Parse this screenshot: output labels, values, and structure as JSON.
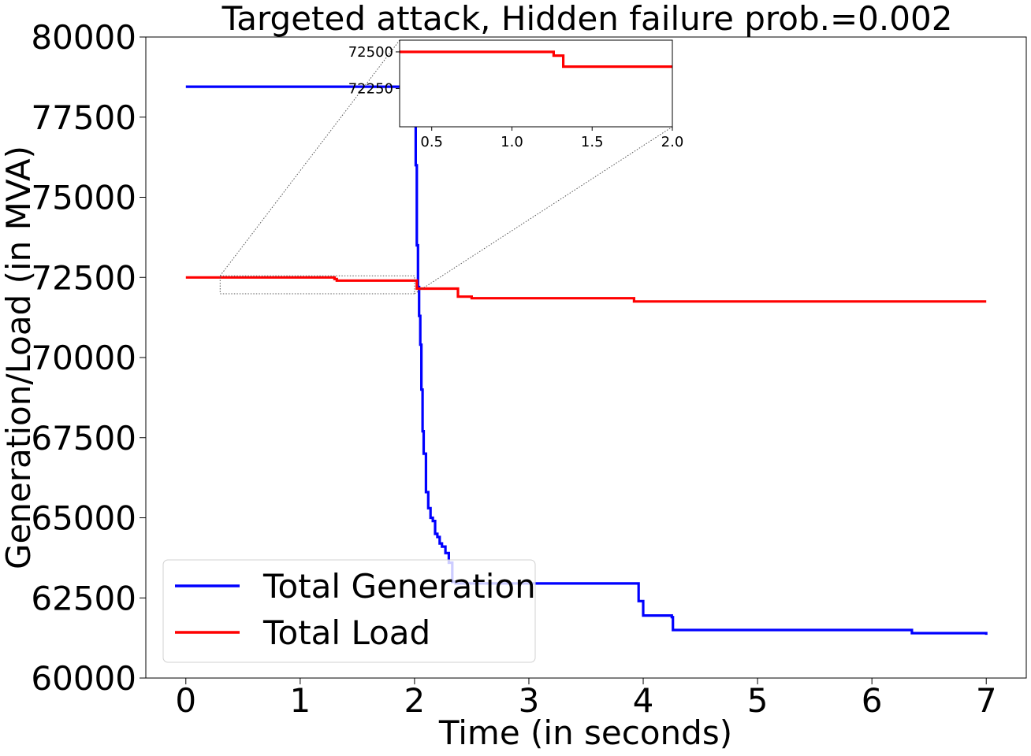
{
  "chart_data": {
    "type": "line",
    "title": "Targeted attack, Hidden failure prob.=0.002",
    "xlabel": "Time (in seconds)",
    "ylabel": "Generation/Load (in MVA)",
    "xlim": [
      -0.35,
      7.35
    ],
    "ylim": [
      60000,
      80000
    ],
    "xticks": [
      0,
      1,
      2,
      3,
      4,
      5,
      6,
      7
    ],
    "yticks": [
      60000,
      62500,
      65000,
      67500,
      70000,
      72500,
      75000,
      77500,
      80000
    ],
    "grid": false,
    "legend_position": "lower-left",
    "series": [
      {
        "name": "Total Generation",
        "color": "#0000ff",
        "x": [
          0,
          2.0,
          2.01,
          2.02,
          2.03,
          2.04,
          2.05,
          2.06,
          2.07,
          2.08,
          2.1,
          2.12,
          2.14,
          2.16,
          2.18,
          2.2,
          2.22,
          2.24,
          2.27,
          2.3,
          2.33,
          2.36,
          3.92,
          3.96,
          4.0,
          4.25,
          4.26,
          6.25,
          6.35,
          7.0
        ],
        "y": [
          78450,
          78450,
          76000,
          73500,
          72200,
          71300,
          70400,
          69000,
          67700,
          67000,
          65800,
          65300,
          65000,
          64900,
          64500,
          64400,
          64200,
          64100,
          63900,
          63600,
          63000,
          62950,
          62950,
          62400,
          61950,
          61900,
          61500,
          61500,
          61400,
          61350
        ]
      },
      {
        "name": "Total Load",
        "color": "#ff0000",
        "x": [
          0,
          1.25,
          1.3,
          1.32,
          2.02,
          2.35,
          2.38,
          2.5,
          3.9,
          3.92,
          7.0
        ],
        "y": [
          72500,
          72500,
          72450,
          72400,
          72150,
          72150,
          71900,
          71850,
          71850,
          71750,
          71750
        ]
      }
    ],
    "inset": {
      "xlim": [
        0.3,
        2.0
      ],
      "ylim": [
        71990,
        72580
      ],
      "xticks": [
        0.5,
        1.0,
        1.5,
        2.0
      ],
      "xtick_labels": [
        "0.5",
        "1.0",
        "1.5",
        "2.0"
      ],
      "yticks": [
        72250,
        72500
      ],
      "yvisible_to": 72550,
      "series": [
        {
          "name": "Total Load",
          "color": "#ff0000",
          "x": [
            0.3,
            1.25,
            1.26,
            1.31,
            1.32,
            2.0
          ],
          "y": [
            72500,
            72500,
            72475,
            72475,
            72400,
            72400
          ]
        }
      ]
    }
  }
}
